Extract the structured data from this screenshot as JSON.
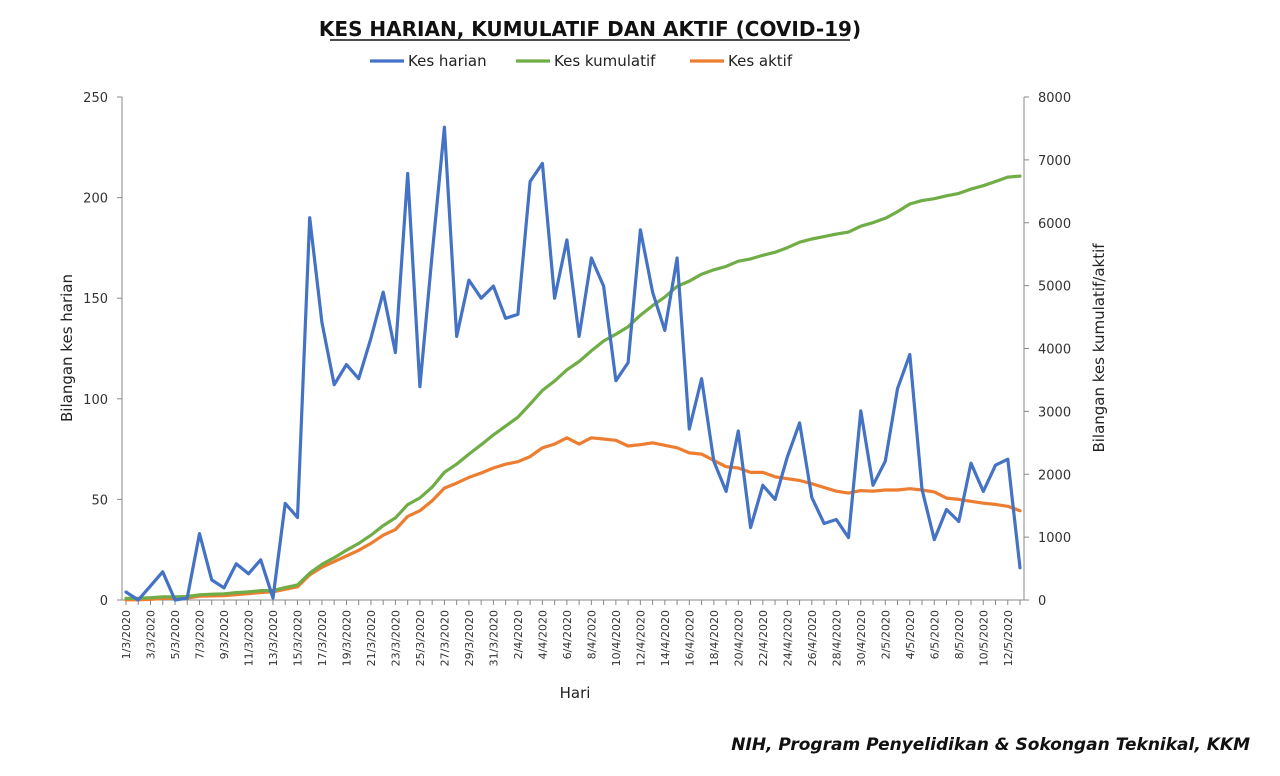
{
  "chart_data": {
    "type": "line",
    "title": "KES HARIAN, KUMULATIF DAN AKTIF (COVID-19)",
    "xlabel": "Hari",
    "ylabel": "Bilangan kes harian",
    "y2label": "Bilangan kes kumulatif/aktif",
    "ylim": [
      0,
      250
    ],
    "y2lim": [
      0,
      8000
    ],
    "yticks": [
      0,
      50,
      100,
      150,
      200,
      250
    ],
    "y2ticks": [
      0,
      1000,
      2000,
      3000,
      4000,
      5000,
      6000,
      7000,
      8000
    ],
    "grid": false,
    "legend_position": "top",
    "x_tick_labels": [
      "1/3/2020",
      "3/3/2020",
      "5/3/2020",
      "7/3/2020",
      "9/3/2020",
      "11/3/2020",
      "13/3/2020",
      "15/3/2020",
      "17/3/2020",
      "19/3/2020",
      "21/3/2020",
      "23/3/2020",
      "25/3/2020",
      "27/3/2020",
      "29/3/2020",
      "31/3/2020",
      "2/4/2020",
      "4/4/2020",
      "6/4/2020",
      "8/4/2020",
      "10/4/2020",
      "12/4/2020",
      "14/4/2020",
      "16/4/2020",
      "18/4/2020",
      "20/4/2020",
      "22/4/2020",
      "24/4/2020",
      "26/4/2020",
      "28/4/2020",
      "30/4/2020",
      "2/5/2020",
      "4/5/2020",
      "6/5/2020",
      "8/5/2020",
      "10/5/2020",
      "12/5/2020"
    ],
    "x_start": "1/3/2020",
    "x_end": "12/5/2020",
    "series": [
      {
        "name": "Kes harian",
        "axis": "left",
        "color": "#4472C4",
        "values": [
          4,
          0,
          7,
          14,
          0,
          1,
          33,
          10,
          6,
          18,
          13,
          20,
          1,
          48,
          41,
          190,
          138,
          107,
          117,
          110,
          130,
          153,
          123,
          212,
          106,
          172,
          235,
          131,
          159,
          150,
          156,
          140,
          142,
          208,
          217,
          150,
          179,
          131,
          170,
          156,
          109,
          118,
          184,
          153,
          134,
          170,
          85,
          110,
          69,
          54,
          84,
          36,
          57,
          50,
          71,
          88,
          51,
          38,
          40,
          31,
          94,
          57,
          69,
          105,
          122,
          55,
          30,
          45,
          39,
          68,
          54,
          67,
          70,
          16
        ]
      },
      {
        "name": "Kes kumulatif",
        "axis": "right",
        "color": "#70AD47",
        "values": [
          25,
          25,
          36,
          50,
          50,
          55,
          83,
          93,
          99,
          117,
          129,
          149,
          150,
          197,
          238,
          428,
          566,
          673,
          790,
          900,
          1030,
          1183,
          1306,
          1518,
          1624,
          1796,
          2031,
          2161,
          2320,
          2470,
          2626,
          2766,
          2908,
          3116,
          3333,
          3483,
          3662,
          3793,
          3963,
          4119,
          4228,
          4346,
          4530,
          4683,
          4817,
          4987,
          5072,
          5182,
          5251,
          5305,
          5389,
          5425,
          5482,
          5532,
          5603,
          5691,
          5742,
          5780,
          5820,
          5851,
          5945,
          6002,
          6071,
          6176,
          6298,
          6353,
          6383,
          6428,
          6467,
          6535,
          6589,
          6656,
          6726,
          6742
        ]
      },
      {
        "name": "Kes aktif",
        "axis": "right",
        "color": "#ED7D31",
        "values": [
          3,
          3,
          10,
          25,
          25,
          30,
          60,
          65,
          70,
          85,
          100,
          120,
          130,
          170,
          210,
          400,
          520,
          610,
          700,
          790,
          900,
          1030,
          1120,
          1330,
          1420,
          1580,
          1780,
          1860,
          1950,
          2020,
          2100,
          2160,
          2200,
          2280,
          2420,
          2480,
          2580,
          2480,
          2580,
          2560,
          2540,
          2450,
          2470,
          2500,
          2460,
          2420,
          2340,
          2320,
          2220,
          2120,
          2100,
          2030,
          2030,
          1960,
          1930,
          1900,
          1850,
          1790,
          1730,
          1700,
          1740,
          1730,
          1750,
          1750,
          1770,
          1750,
          1720,
          1620,
          1600,
          1570,
          1540,
          1520,
          1490,
          1420
        ]
      }
    ]
  },
  "source": "NIH, Program Penyelidikan & Sokongan Teknikal, KKM"
}
